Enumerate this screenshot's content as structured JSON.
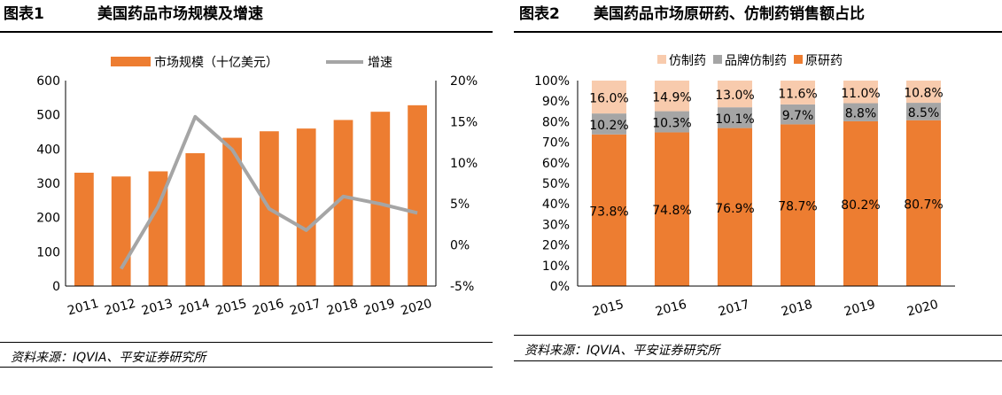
{
  "figure1": {
    "label": "图表1",
    "title": "美国药品市场规模及增速",
    "source": "资料来源：IQVIA、平安证券研究所"
  },
  "figure2": {
    "label": "图表2",
    "title": "美国药品市场原研药、仿制药销售额占比",
    "source": "资料来源：IQVIA、平安证券研究所"
  },
  "colors": {
    "bar_orange": "#ED7D31",
    "line_gray": "#A5A5A5",
    "generic_peach": "#F8CBAD",
    "branded_generic_gray": "#A5A5A5"
  },
  "chart_data": [
    {
      "type": "bar",
      "categories": [
        "2011",
        "2012",
        "2013",
        "2014",
        "2015",
        "2016",
        "2017",
        "2018",
        "2019",
        "2020"
      ],
      "series": [
        {
          "name": "市场规模（十亿美元）",
          "type": "bar",
          "axis": "left",
          "values": [
            331,
            320,
            335,
            388,
            433,
            452,
            460,
            485,
            509,
            528
          ]
        },
        {
          "name": "增速",
          "type": "line",
          "axis": "right",
          "values": [
            null,
            -2.9,
            4.7,
            15.6,
            11.6,
            4.4,
            1.8,
            5.9,
            5.0,
            3.9
          ]
        }
      ],
      "ylim": [
        0,
        600
      ],
      "yticks": [
        "0",
        "100",
        "200",
        "300",
        "400",
        "500",
        "600"
      ],
      "y2lim": [
        -5,
        20
      ],
      "y2ticks": [
        "-5%",
        "0%",
        "5%",
        "10%",
        "15%",
        "20%"
      ],
      "legend": "top-center",
      "grid": false
    },
    {
      "type": "bar",
      "stacked": true,
      "categories": [
        "2015",
        "2016",
        "2017",
        "2018",
        "2019",
        "2020"
      ],
      "series": [
        {
          "name": "原研药",
          "values": [
            73.8,
            74.8,
            76.9,
            78.7,
            80.2,
            80.7
          ],
          "labels": [
            "73.8%",
            "74.8%",
            "76.9%",
            "78.7%",
            "80.2%",
            "80.7%"
          ]
        },
        {
          "name": "品牌仿制药",
          "values": [
            10.2,
            10.3,
            10.1,
            9.7,
            8.8,
            8.5
          ],
          "labels": [
            "10.2%",
            "10.3%",
            "10.1%",
            "9.7%",
            "8.8%",
            "8.5%"
          ]
        },
        {
          "name": "仿制药",
          "values": [
            16.0,
            14.9,
            13.0,
            11.6,
            11.0,
            10.8
          ],
          "labels": [
            "16.0%",
            "14.9%",
            "13.0%",
            "11.6%",
            "11.0%",
            "10.8%"
          ]
        }
      ],
      "legend_order": [
        "仿制药",
        "品牌仿制药",
        "原研药"
      ],
      "ylim": [
        0,
        100
      ],
      "yticks": [
        "0%",
        "10%",
        "20%",
        "30%",
        "40%",
        "50%",
        "60%",
        "70%",
        "80%",
        "90%",
        "100%"
      ],
      "legend": "top-center",
      "grid": false
    }
  ]
}
